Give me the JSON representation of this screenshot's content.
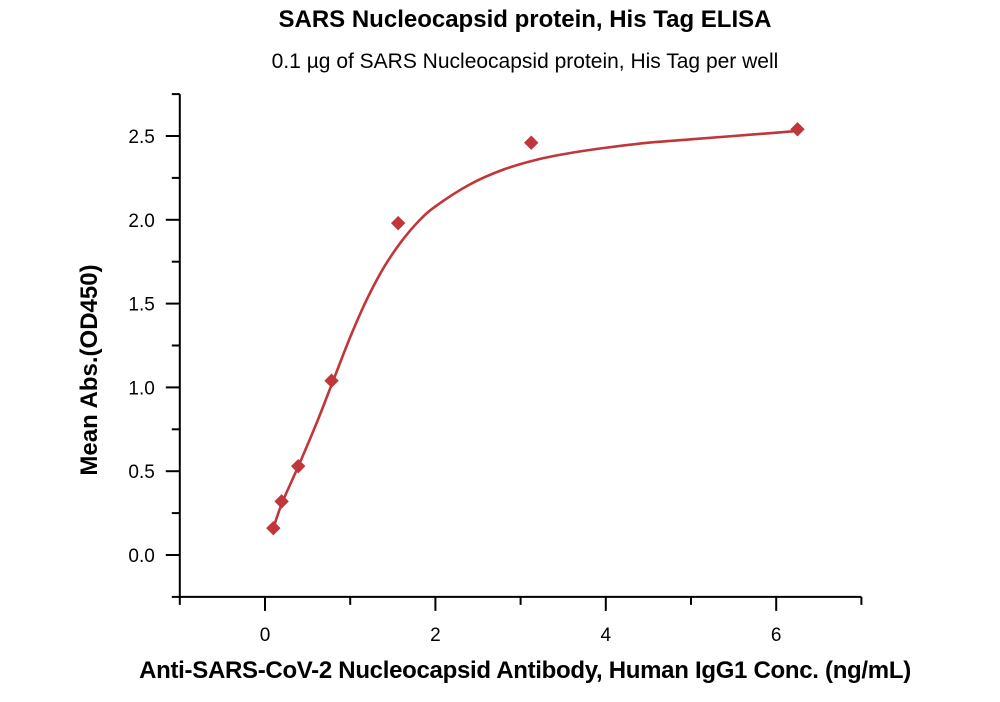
{
  "chart_data": {
    "type": "scatter",
    "title": "SARS Nucleocapsid protein, His Tag ELISA",
    "subtitle": "0.1 µg of SARS Nucleocapsid protein, His Tag per well",
    "xlabel": "Anti-SARS-CoV-2 Nucleocapsid Antibody, Human IgG1 Conc. (ng/mL)",
    "ylabel": "Mean Abs.(OD450)",
    "xlim": [
      -1,
      7
    ],
    "ylim": [
      -0.25,
      2.75
    ],
    "x_ticks": [
      0,
      2,
      4,
      6
    ],
    "x_minor_ticks": [
      -1,
      1,
      3,
      5,
      7
    ],
    "y_ticks": [
      0.0,
      0.5,
      1.0,
      1.5,
      2.0,
      2.5
    ],
    "y_tick_labels": [
      "0.0",
      "0.5",
      "1.0",
      "1.5",
      "2.0",
      "2.5"
    ],
    "y_minor_ticks": [
      -0.25,
      0.25,
      0.75,
      1.25,
      1.75,
      2.25,
      2.75
    ],
    "grid": false,
    "legend": null,
    "color": "#c0363a",
    "marker": "diamond",
    "series": [
      {
        "name": "Mean Abs.(OD450)",
        "x": [
          0.098,
          0.195,
          0.39,
          0.781,
          1.5625,
          3.125,
          6.25
        ],
        "y": [
          0.16,
          0.32,
          0.53,
          1.04,
          1.98,
          2.46,
          2.54
        ]
      }
    ],
    "fit_curve": {
      "type": "4PL sigmoidal fit",
      "x": [
        0.098,
        0.2,
        0.4,
        0.6,
        0.8,
        1.0,
        1.2,
        1.4,
        1.6,
        1.8,
        2.0,
        2.4,
        2.8,
        3.2,
        3.6,
        4.0,
        4.5,
        5.0,
        5.5,
        6.0,
        6.25
      ],
      "y": [
        0.16,
        0.31,
        0.54,
        0.78,
        1.04,
        1.3,
        1.53,
        1.72,
        1.87,
        1.99,
        2.08,
        2.21,
        2.3,
        2.36,
        2.4,
        2.43,
        2.46,
        2.48,
        2.5,
        2.52,
        2.53
      ]
    }
  }
}
